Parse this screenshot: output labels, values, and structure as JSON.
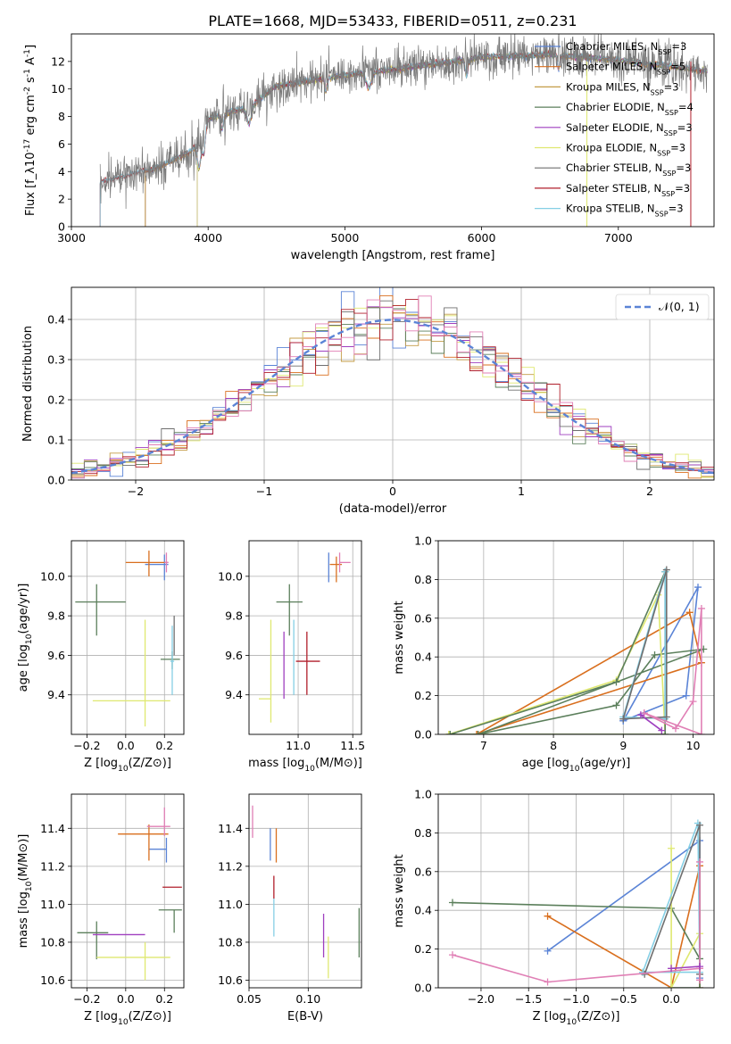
{
  "figure": {
    "title": "PLATE=1668, MJD=53433, FIBERID=0511, z=0.231"
  },
  "colors": [
    "#5b84d6",
    "#d96f1e",
    "#c49c47",
    "#5b7f5b",
    "#9f3fbf",
    "#dfe870",
    "#6f6f6f",
    "#b11f2b",
    "#85cfe5",
    "#e07fb5"
  ],
  "chart_data": [
    {
      "id": "spectrum",
      "type": "line",
      "xlabel": "wavelength [Angstrom, rest frame]",
      "ylabel": "Flux [f_λ10^{-17} erg cm^{-2} s^{-1} A^{-1}]",
      "xlim": [
        3000,
        7700
      ],
      "ylim": [
        0,
        14
      ],
      "xticks": [
        3000,
        4000,
        5000,
        6000,
        7000
      ],
      "yticks": [
        0,
        2,
        4,
        6,
        8,
        10,
        12
      ],
      "legend_loc": "upper right",
      "wave_range": [
        3210,
        7650
      ],
      "continuum": [
        [
          3210,
          3.2
        ],
        [
          3600,
          4.2
        ],
        [
          3850,
          5.3
        ],
        [
          3950,
          6.2
        ],
        [
          4000,
          7.8
        ],
        [
          4300,
          8.7
        ],
        [
          4500,
          10.2
        ],
        [
          5000,
          11.0
        ],
        [
          5500,
          11.6
        ],
        [
          6000,
          12.3
        ],
        [
          6500,
          12.5
        ],
        [
          7000,
          12.1
        ],
        [
          7650,
          11.3
        ]
      ],
      "series": [
        {
          "name": "Chabrier MILES, N_{SSP}=3",
          "start": 3540
        },
        {
          "name": "Salpeter MILES, N_{SSP}=5",
          "start": 3540
        },
        {
          "name": "Kroupa MILES, N_{SSP}=3",
          "start": 3540
        },
        {
          "name": "Chabrier ELODIE, N_{SSP}=4",
          "start": 3920
        },
        {
          "name": "Salpeter ELODIE, N_{SSP}=3",
          "start": 3920
        },
        {
          "name": "Kroupa ELODIE, N_{SSP}=3",
          "start": 3920
        },
        {
          "name": "Chabrier STELIB, N_{SSP}=3",
          "start": 3210
        },
        {
          "name": "Salpeter STELIB, N_{SSP}=3",
          "start": 3210
        },
        {
          "name": "Kroupa STELIB, N_{SSP}=3",
          "start": 3210
        }
      ]
    },
    {
      "id": "residuals",
      "type": "line",
      "xlabel": "(data-model)/error",
      "ylabel": "Normed distribution",
      "xlim": [
        -2.5,
        2.5
      ],
      "ylim": [
        0,
        0.48
      ],
      "xticks": [
        -2,
        -1,
        0,
        1,
        2
      ],
      "yticks": [
        0.0,
        0.1,
        0.2,
        0.3,
        0.4
      ],
      "grid": true,
      "legend_loc": "upper right",
      "legend": "𝒩(0, 1)",
      "bin_width": 0.1,
      "series_count": 9
    },
    {
      "id": "z-age",
      "type": "scatter",
      "xlabel": "Z [log10(Z/Z⊙)]",
      "ylabel": "age  [log10(age/yr)]",
      "xlim": [
        -0.28,
        0.3
      ],
      "ylim": [
        9.2,
        10.18
      ],
      "xticks": [
        -0.2,
        0.0,
        0.2
      ],
      "yticks": [
        9.4,
        9.6,
        9.8,
        10.0
      ],
      "grid": true,
      "points": [
        {
          "s": 0,
          "x": 0.2,
          "y": 10.06,
          "dx": [
            0.1,
            0.02
          ],
          "dy": [
            0.08,
            0.05
          ]
        },
        {
          "s": 1,
          "x": 0.12,
          "y": 10.07,
          "dx": [
            0.12,
            0.1
          ],
          "dy": [
            0.07,
            0.06
          ]
        },
        {
          "s": 3,
          "x": -0.15,
          "y": 9.87,
          "dx": [
            0.11,
            0.15
          ],
          "dy": [
            0.17,
            0.09
          ]
        },
        {
          "s": 3,
          "x": 0.24,
          "y": 9.58,
          "dx": [
            0.06,
            0.04
          ],
          "dy": [
            0.05,
            0.04
          ]
        },
        {
          "s": 5,
          "x": 0.1,
          "y": 9.37,
          "dx": [
            0.27,
            0.13
          ],
          "dy": [
            0.13,
            0.41
          ]
        },
        {
          "s": 6,
          "x": 0.25,
          "y": 9.7,
          "dx": [
            0.0,
            0.0
          ],
          "dy": [
            0.1,
            0.1
          ]
        },
        {
          "s": 8,
          "x": 0.24,
          "y": 9.57,
          "dx": [
            0.01,
            0.01
          ],
          "dy": [
            0.17,
            0.18
          ]
        },
        {
          "s": 9,
          "x": 0.21,
          "y": 10.07,
          "dx": [
            0.01,
            0.01
          ],
          "dy": [
            0.05,
            0.05
          ]
        }
      ]
    },
    {
      "id": "mass-age",
      "type": "scatter",
      "xlabel": "mass [log10(M/M⊙)]",
      "ylabel": "",
      "xlim": [
        10.55,
        11.58
      ],
      "ylim": [
        9.2,
        10.18
      ],
      "xticks": [
        10.5,
        11.0,
        11.5
      ],
      "yticks": [
        9.4,
        9.6,
        9.8,
        10.0
      ],
      "grid": true,
      "points": [
        {
          "s": 0,
          "x": 11.28,
          "y": 10.05,
          "dx": [
            0.0,
            0.0
          ],
          "dy": [
            0.08,
            0.07
          ]
        },
        {
          "s": 1,
          "x": 11.35,
          "y": 10.06,
          "dx": [
            0.06,
            0.05
          ],
          "dy": [
            0.09,
            0.04
          ]
        },
        {
          "s": 3,
          "x": 10.92,
          "y": 9.87,
          "dx": [
            0.12,
            0.12
          ],
          "dy": [
            0.17,
            0.09
          ]
        },
        {
          "s": 4,
          "x": 10.87,
          "y": 9.57,
          "dx": [
            0.0,
            0.0
          ],
          "dy": [
            0.19,
            0.15
          ]
        },
        {
          "s": 5,
          "x": 10.75,
          "y": 9.38,
          "dx": [
            0.11,
            0.0
          ],
          "dy": [
            0.12,
            0.4
          ]
        },
        {
          "s": 7,
          "x": 11.08,
          "y": 9.57,
          "dx": [
            0.1,
            0.12
          ],
          "dy": [
            0.17,
            0.15
          ]
        },
        {
          "s": 8,
          "x": 10.96,
          "y": 9.6,
          "dx": [
            0.0,
            0.0
          ],
          "dy": [
            0.2,
            0.18
          ]
        },
        {
          "s": 9,
          "x": 11.38,
          "y": 10.07,
          "dx": [
            0.0,
            0.1
          ],
          "dy": [
            0.05,
            0.05
          ]
        }
      ]
    },
    {
      "id": "age-weight",
      "type": "line",
      "xlabel": "age  [log10(age/yr)]",
      "ylabel": "mass weight",
      "xlim": [
        6.35,
        10.3
      ],
      "ylim": [
        0,
        1
      ],
      "xticks": [
        7,
        8,
        9,
        10
      ],
      "yticks": [
        0.0,
        0.2,
        0.4,
        0.6,
        0.8,
        1.0
      ],
      "grid": true,
      "series": [
        {
          "s": 0,
          "x": [
            9.0,
            9.9,
            10.07,
            9.0
          ],
          "y": [
            0.07,
            0.2,
            0.76,
            0.07
          ]
        },
        {
          "s": 1,
          "x": [
            6.9,
            9.95,
            10.12,
            6.9
          ],
          "y": [
            0.0,
            0.63,
            0.37,
            0.0
          ]
        },
        {
          "s": 3,
          "x": [
            6.92,
            8.9,
            9.45,
            10.15,
            6.92
          ],
          "y": [
            0.0,
            0.15,
            0.41,
            0.44,
            0.0
          ]
        },
        {
          "s": 5,
          "x": [
            6.5,
            8.9,
            9.5,
            9.6,
            6.5
          ],
          "y": [
            0.0,
            0.28,
            0.72,
            0.0,
            0.0
          ]
        },
        {
          "s": 3,
          "x": [
            6.52,
            8.9,
            9.6,
            9.6,
            6.52
          ],
          "y": [
            0.0,
            0.27,
            0.84,
            0.0,
            0.0
          ]
        },
        {
          "s": 8,
          "x": [
            9.0,
            9.6,
            9.6,
            9.0
          ],
          "y": [
            0.09,
            0.84,
            0.08,
            0.09
          ]
        },
        {
          "s": 6,
          "x": [
            9.0,
            9.62,
            9.62,
            9.0
          ],
          "y": [
            0.08,
            0.85,
            0.09,
            0.08
          ]
        },
        {
          "s": 9,
          "x": [
            9.3,
            9.75,
            10.0,
            10.12,
            10.12,
            9.3
          ],
          "y": [
            0.11,
            0.03,
            0.17,
            0.65,
            0.0,
            0.11
          ]
        },
        {
          "s": 4,
          "x": [
            9.25,
            9.55
          ],
          "y": [
            0.1,
            0.02
          ]
        }
      ]
    },
    {
      "id": "z-mass",
      "type": "scatter",
      "xlabel": "Z [log10(Z/Z⊙)]",
      "ylabel": "mass [log10(M/M⊙)]",
      "xlim": [
        -0.28,
        0.3
      ],
      "ylim": [
        10.56,
        11.58
      ],
      "xticks": [
        -0.2,
        0.0,
        0.2
      ],
      "yticks": [
        10.6,
        10.8,
        11.0,
        11.2,
        11.4
      ],
      "grid": true,
      "points": [
        {
          "s": 0,
          "x": 0.21,
          "y": 11.29,
          "dx": [
            0.09,
            0.0
          ],
          "dy": [
            0.07,
            0.06
          ]
        },
        {
          "s": 1,
          "x": 0.12,
          "y": 11.37,
          "dx": [
            0.16,
            0.1
          ],
          "dy": [
            0.14,
            0.05
          ]
        },
        {
          "s": 3,
          "x": -0.15,
          "y": 10.85,
          "dx": [
            0.1,
            0.06
          ],
          "dy": [
            0.14,
            0.06
          ]
        },
        {
          "s": 3,
          "x": 0.25,
          "y": 10.97,
          "dx": [
            0.08,
            0.04
          ],
          "dy": [
            0.12,
            0.0
          ]
        },
        {
          "s": 4,
          "x": 0.1,
          "y": 10.84,
          "dx": [
            0.27,
            0.0
          ],
          "dy": [
            0.0,
            0.0
          ]
        },
        {
          "s": 5,
          "x": 0.1,
          "y": 10.72,
          "dx": [
            0.25,
            0.13
          ],
          "dy": [
            0.12,
            0.08
          ]
        },
        {
          "s": 7,
          "x": 0.26,
          "y": 11.09,
          "dx": [
            0.07,
            0.03
          ],
          "dy": [
            0.0,
            0.0
          ]
        },
        {
          "s": 9,
          "x": 0.2,
          "y": 11.41,
          "dx": [
            0.09,
            0.03
          ],
          "dy": [
            0.05,
            0.1
          ]
        }
      ]
    },
    {
      "id": "ebv-mass",
      "type": "scatter",
      "xlabel": "E(B-V)",
      "ylabel": "",
      "xlim": [
        0.05,
        0.145
      ],
      "ylim": [
        10.56,
        11.58
      ],
      "xticks": [
        0.05,
        0.1
      ],
      "yticks": [
        10.6,
        10.8,
        11.0,
        11.2,
        11.4
      ],
      "grid": true,
      "points": [
        {
          "s": 0,
          "x": 0.068,
          "y": 11.32,
          "dx": [
            0,
            0
          ],
          "dy": [
            0.09,
            0.08
          ]
        },
        {
          "s": 1,
          "x": 0.073,
          "y": 11.32,
          "dx": [
            0,
            0
          ],
          "dy": [
            0.1,
            0.08
          ]
        },
        {
          "s": 3,
          "x": 0.143,
          "y": 10.85,
          "dx": [
            0,
            0
          ],
          "dy": [
            0.13,
            0.13
          ]
        },
        {
          "s": 4,
          "x": 0.113,
          "y": 10.84,
          "dx": [
            0,
            0
          ],
          "dy": [
            0.12,
            0.11
          ]
        },
        {
          "s": 5,
          "x": 0.117,
          "y": 10.72,
          "dx": [
            0,
            0
          ],
          "dy": [
            0.11,
            0.11
          ]
        },
        {
          "s": 7,
          "x": 0.071,
          "y": 11.09,
          "dx": [
            0,
            0
          ],
          "dy": [
            0.06,
            0.06
          ]
        },
        {
          "s": 8,
          "x": 0.071,
          "y": 10.93,
          "dx": [
            0,
            0
          ],
          "dy": [
            0.1,
            0.1
          ]
        },
        {
          "s": 9,
          "x": 0.053,
          "y": 11.43,
          "dx": [
            0,
            0
          ],
          "dy": [
            0.08,
            0.09
          ]
        }
      ]
    },
    {
      "id": "z-weight",
      "type": "line",
      "xlabel": "Z [log10(Z/Z⊙)]",
      "ylabel": "mass weight",
      "xlim": [
        -2.45,
        0.45
      ],
      "ylim": [
        0,
        1
      ],
      "xticks": [
        -2.0,
        -1.5,
        -1.0,
        -0.5,
        0.0
      ],
      "yticks": [
        0.0,
        0.2,
        0.4,
        0.6,
        0.8,
        1.0
      ],
      "grid": true,
      "series": [
        {
          "s": 0,
          "x": [
            -1.3,
            0.3,
            0.3
          ],
          "y": [
            0.19,
            0.76,
            0.05
          ]
        },
        {
          "s": 1,
          "x": [
            -1.3,
            0.0,
            0.3,
            0.3
          ],
          "y": [
            0.37,
            0.0,
            0.63,
            0.0
          ]
        },
        {
          "s": 3,
          "x": [
            -2.3,
            0.0,
            0.3,
            0.3,
            0.0
          ],
          "y": [
            0.44,
            0.41,
            0.15,
            0.0,
            0.0
          ]
        },
        {
          "s": 5,
          "x": [
            0.0,
            0.0,
            0.3
          ],
          "y": [
            0.72,
            0.0,
            0.28
          ]
        },
        {
          "s": 8,
          "x": [
            -0.3,
            0.28,
            0.3,
            -0.3
          ],
          "y": [
            0.08,
            0.85,
            0.08,
            0.08
          ]
        },
        {
          "s": 6,
          "x": [
            -0.28,
            0.3,
            0.3
          ],
          "y": [
            0.07,
            0.84,
            0.07
          ]
        },
        {
          "s": 9,
          "x": [
            -2.3,
            -1.3,
            0.3,
            0.3,
            0.3
          ],
          "y": [
            0.17,
            0.03,
            0.1,
            0.65,
            0.04
          ]
        },
        {
          "s": 4,
          "x": [
            0.0,
            0.3
          ],
          "y": [
            0.1,
            0.11
          ]
        }
      ]
    }
  ]
}
